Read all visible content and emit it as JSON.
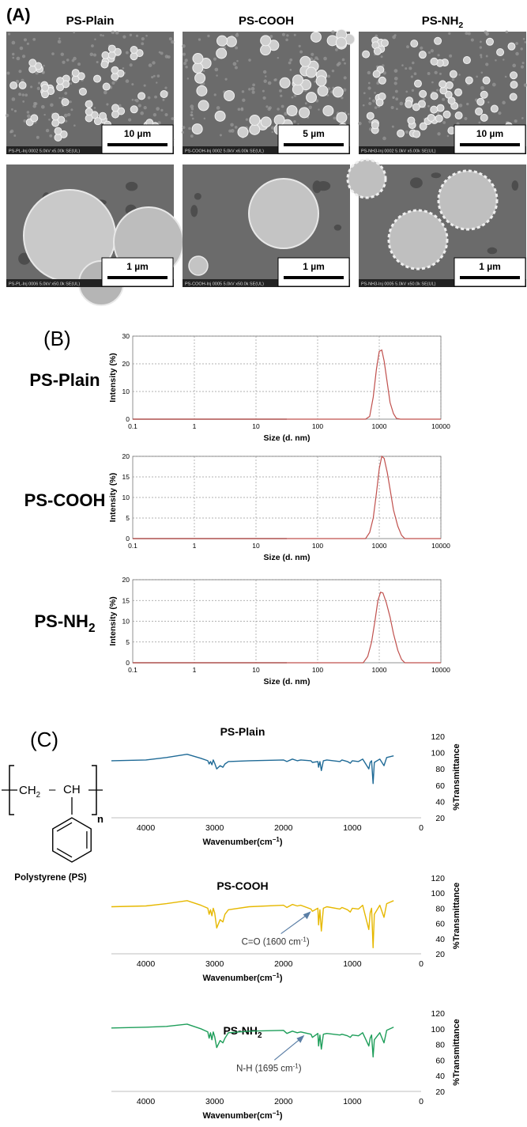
{
  "panel_a": {
    "label": "(A)",
    "columns": [
      {
        "title": "PS-Plain",
        "top": {
          "scale": "10 µm",
          "footer": "PS-PL-Inj 0002 5.0kV x5.00k SE(UL)"
        },
        "bottom": {
          "scale": "1 µm",
          "footer": "PS-PL-Inj 0006 5.0kV x50.0k SE(UL)"
        }
      },
      {
        "title": "PS-COOH",
        "top": {
          "scale": "5  µm",
          "footer": "PS-COOH-Inj 0002 5.0kV x6.00k SE(UL)"
        },
        "bottom": {
          "scale": "1 µm",
          "footer": "PS-COOH-Inj 0005 5.0kV x50.0k SE(UL)"
        }
      },
      {
        "title": "PS-NH",
        "title_sub": "2",
        "top": {
          "scale": "10 µm",
          "footer": "PS-NH3-Inj 0002 5.0kV x5.00k SE(UL)"
        },
        "bottom": {
          "scale": "1 µm",
          "footer": "PS-NH3-Inj 0005 5.0kV x50.0k SE(UL)"
        }
      }
    ]
  },
  "panel_b": {
    "label": "(B)",
    "row_labels": [
      {
        "text": "PS-Plain",
        "sub": ""
      },
      {
        "text": "PS-COOH",
        "sub": ""
      },
      {
        "text": "PS-NH",
        "sub": "2"
      }
    ]
  },
  "panel_c": {
    "label": "(C)",
    "structure": {
      "ch2": "CH",
      "ch2_sub": "2",
      "dash": "–",
      "ch": "CH",
      "n": "n",
      "caption": "Polystyrene (PS)"
    },
    "annotations": [
      {
        "chart": 1,
        "text": "C=O (1600 cm",
        "sup": "-1",
        "close": ")",
        "wavenumber": 1600
      },
      {
        "chart": 2,
        "text": "N-H (1695 cm",
        "sup": "-1",
        "close": ")",
        "wavenumber": 1695
      }
    ]
  },
  "colors": {
    "dls_line": "#c0504d",
    "ftir_plain": "#1f6a96",
    "ftir_cooh": "#e6b800",
    "ftir_nh2": "#1e9e5a",
    "sem_bg": "#6b6b6b",
    "arrow": "#5b7fa6"
  },
  "chart_data": [
    {
      "type": "line",
      "scale": "log-x",
      "title": "PS-Plain",
      "xlabel": "Size (d. nm)",
      "ylabel": "Intensity (%)",
      "xlim": [
        0.1,
        10000
      ],
      "ylim": [
        0,
        30
      ],
      "xticks": [
        "0.1",
        "1",
        "10",
        "100",
        "1000",
        "10000"
      ],
      "yticks": [
        "0",
        "10",
        "20",
        "30"
      ],
      "grid": true,
      "series": [
        {
          "x": [
            0.1,
            600,
            700,
            800,
            900,
            1000,
            1100,
            1200,
            1350,
            1500,
            1700,
            1900,
            2200,
            10000
          ],
          "y": [
            0,
            0,
            1,
            8,
            18,
            24.5,
            25,
            21,
            13,
            6,
            2,
            0.3,
            0,
            0
          ]
        }
      ]
    },
    {
      "type": "line",
      "scale": "log-x",
      "title": "PS-COOH",
      "xlabel": "Size (d. nm)",
      "ylabel": "Intensity (%)",
      "xlim": [
        0.1,
        10000
      ],
      "ylim": [
        0,
        20
      ],
      "xticks": [
        "0.1",
        "1",
        "10",
        "100",
        "1000",
        "10000"
      ],
      "yticks": [
        "0",
        "5",
        "10",
        "15",
        "20"
      ],
      "grid": true,
      "series": [
        {
          "x": [
            0.1,
            600,
            700,
            800,
            900,
            1000,
            1100,
            1200,
            1350,
            1500,
            1700,
            2000,
            2300,
            2600,
            10000
          ],
          "y": [
            0,
            0,
            1.5,
            5,
            11,
            17,
            20,
            19.5,
            16,
            12,
            7,
            3,
            0.8,
            0,
            0
          ]
        }
      ]
    },
    {
      "type": "line",
      "scale": "log-x",
      "title": "PS-NH2",
      "xlabel": "Size (d. nm)",
      "ylabel": "Intensity (%)",
      "xlim": [
        0.1,
        10000
      ],
      "ylim": [
        0,
        20
      ],
      "xticks": [
        "0.1",
        "1",
        "10",
        "100",
        "1000",
        "10000"
      ],
      "yticks": [
        "0",
        "5",
        "10",
        "15",
        "20"
      ],
      "grid": true,
      "series": [
        {
          "x": [
            0.1,
            550,
            650,
            750,
            850,
            950,
            1050,
            1150,
            1300,
            1500,
            1700,
            2000,
            2300,
            2600,
            10000
          ],
          "y": [
            0,
            0,
            1.5,
            5,
            10,
            15,
            17,
            16.8,
            14.5,
            11,
            7,
            3,
            0.8,
            0,
            0
          ]
        }
      ]
    },
    {
      "type": "line",
      "title": "PS-Plain",
      "xlabel": "Wavenumber(cm",
      "xlabel_sup": "−1",
      "xlabel_close": ")",
      "ylabel": "%Transmittance",
      "xlim": [
        4500,
        0
      ],
      "ylim": [
        20,
        120
      ],
      "xticks": [
        "4000",
        "3000",
        "2000",
        "1000",
        "0"
      ],
      "yticks": [
        "20",
        "40",
        "60",
        "80",
        "100",
        "120"
      ],
      "series": [
        {
          "x": [
            4500,
            4000,
            3700,
            3400,
            3200,
            3100,
            3080,
            3060,
            3040,
            3020,
            3000,
            2970,
            2920,
            2880,
            2850,
            2800,
            2500,
            2000,
            1950,
            1870,
            1800,
            1750,
            1600,
            1580,
            1500,
            1490,
            1470,
            1450,
            1420,
            1370,
            1180,
            1150,
            1070,
            1030,
            1000,
            910,
            850,
            760,
            740,
            720,
            698,
            680,
            600,
            540,
            500,
            400
          ],
          "y": [
            90,
            91,
            94,
            98,
            93,
            90,
            86,
            89,
            85,
            91,
            87,
            80,
            84,
            82,
            86,
            89,
            90,
            91,
            89,
            92,
            90,
            91,
            90,
            88,
            89,
            82,
            89,
            78,
            90,
            91,
            89,
            91,
            89,
            87,
            90,
            89,
            92,
            80,
            88,
            90,
            62,
            88,
            92,
            84,
            94,
            96
          ]
        }
      ]
    },
    {
      "type": "line",
      "title": "PS-COOH",
      "xlabel": "Wavenumber(cm",
      "xlabel_sup": "−1",
      "xlabel_close": ")",
      "ylabel": "%Transmittance",
      "xlim": [
        4500,
        0
      ],
      "ylim": [
        20,
        120
      ],
      "xticks": [
        "4000",
        "3000",
        "2000",
        "1000",
        "0"
      ],
      "yticks": [
        "20",
        "40",
        "60",
        "80",
        "100",
        "120"
      ],
      "series": [
        {
          "x": [
            4500,
            4000,
            3700,
            3400,
            3200,
            3100,
            3080,
            3060,
            3040,
            3020,
            3000,
            2970,
            2920,
            2880,
            2850,
            2800,
            2500,
            2000,
            1950,
            1870,
            1800,
            1750,
            1600,
            1580,
            1500,
            1490,
            1470,
            1450,
            1420,
            1370,
            1180,
            1150,
            1070,
            1030,
            1000,
            910,
            850,
            760,
            740,
            720,
            698,
            680,
            600,
            540,
            500,
            400
          ],
          "y": [
            82,
            83,
            86,
            90,
            84,
            80,
            72,
            78,
            70,
            80,
            74,
            54,
            65,
            62,
            72,
            78,
            82,
            84,
            81,
            85,
            83,
            84,
            79,
            76,
            80,
            58,
            78,
            50,
            80,
            82,
            79,
            81,
            78,
            75,
            80,
            79,
            84,
            52,
            74,
            80,
            28,
            72,
            84,
            68,
            86,
            90
          ]
        }
      ]
    },
    {
      "type": "line",
      "title": "PS-NH2",
      "xlabel": "Wavenumber(cm",
      "xlabel_sup": "−1",
      "xlabel_close": ")",
      "ylabel": "%Transmittance",
      "xlim": [
        4500,
        0
      ],
      "ylim": [
        20,
        120
      ],
      "xticks": [
        "4000",
        "3000",
        "2000",
        "1000",
        "0"
      ],
      "yticks": [
        "20",
        "40",
        "60",
        "80",
        "100",
        "120"
      ],
      "series": [
        {
          "x": [
            4500,
            4000,
            3700,
            3400,
            3200,
            3100,
            3080,
            3060,
            3040,
            3020,
            3000,
            2970,
            2920,
            2880,
            2850,
            2800,
            2500,
            2000,
            1950,
            1870,
            1800,
            1750,
            1600,
            1580,
            1500,
            1490,
            1470,
            1450,
            1420,
            1370,
            1180,
            1150,
            1070,
            1030,
            1000,
            910,
            850,
            760,
            740,
            720,
            698,
            680,
            600,
            540,
            500,
            400
          ],
          "y": [
            101,
            102,
            103,
            106,
            100,
            96,
            88,
            95,
            86,
            96,
            90,
            76,
            85,
            82,
            88,
            95,
            97,
            98,
            94,
            97,
            95,
            96,
            93,
            89,
            94,
            78,
            92,
            74,
            93,
            94,
            92,
            93,
            91,
            89,
            92,
            91,
            95,
            78,
            88,
            92,
            64,
            86,
            95,
            82,
            98,
            102
          ]
        }
      ]
    }
  ]
}
